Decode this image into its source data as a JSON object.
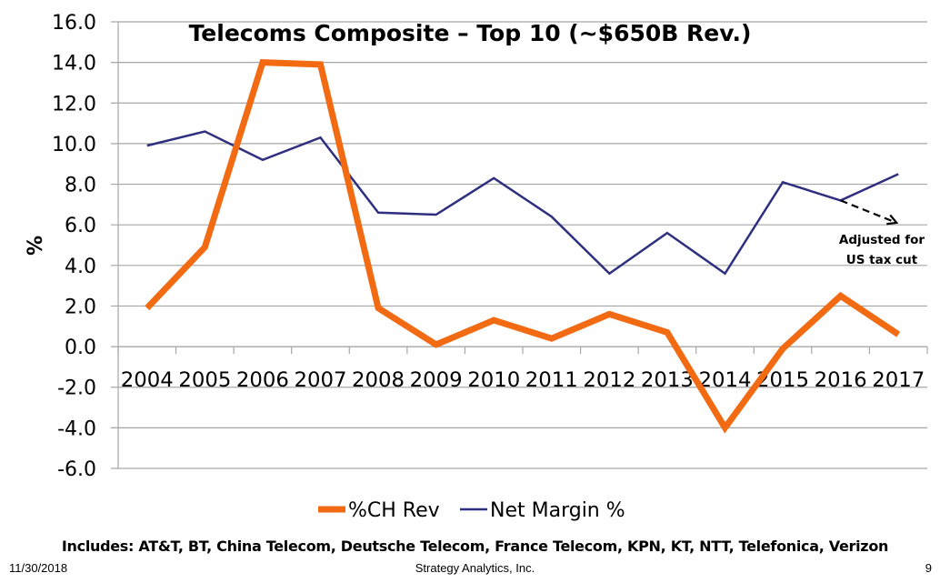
{
  "chart_data": {
    "type": "line",
    "title": "Telecoms Composite – Top 10 (~$650B Rev.)",
    "xlabel": "",
    "ylabel": "%",
    "ylim": [
      -6.0,
      16.0
    ],
    "yticks": [
      "16.0",
      "14.0",
      "12.0",
      "10.0",
      "8.0",
      "6.0",
      "4.0",
      "2.0",
      "0.0",
      "-2.0",
      "-4.0",
      "-6.0"
    ],
    "ytick_values": [
      16,
      14,
      12,
      10,
      8,
      6,
      4,
      2,
      0,
      -2,
      -4,
      -6
    ],
    "grid": true,
    "legend_position": "bottom",
    "categories": [
      "2004",
      "2005",
      "2006",
      "2007",
      "2008",
      "2009",
      "2010",
      "2011",
      "2012",
      "2013",
      "2014",
      "2015",
      "2016",
      "2017"
    ],
    "series": [
      {
        "name": "%CH Rev",
        "color": "#F26A11",
        "values": [
          1.9,
          4.9,
          14.0,
          13.9,
          1.9,
          0.1,
          1.3,
          0.4,
          1.6,
          0.7,
          -4.0,
          -0.1,
          2.5,
          0.6
        ]
      },
      {
        "name": "Net Margin %",
        "color": "#2E2F7E",
        "values": [
          9.9,
          10.6,
          9.2,
          10.3,
          6.6,
          6.5,
          8.3,
          6.4,
          3.6,
          5.6,
          3.6,
          8.1,
          7.2,
          8.5
        ]
      }
    ],
    "annotations": [
      {
        "text_lines": [
          "Adjusted for",
          "US tax cut"
        ],
        "arrow_from": {
          "category": "2016",
          "value": 7.2
        },
        "arrow_to": {
          "category": "2017",
          "value": 6.1
        }
      }
    ]
  },
  "footer": {
    "includes_note": "Includes: AT&T, BT, China Telecom, Deutsche Telecom, France Telecom, KPN, KT, NTT, Telefonica, Verizon",
    "date": "11/30/2018",
    "company": "Strategy Analytics, Inc.",
    "page_number": "9"
  }
}
